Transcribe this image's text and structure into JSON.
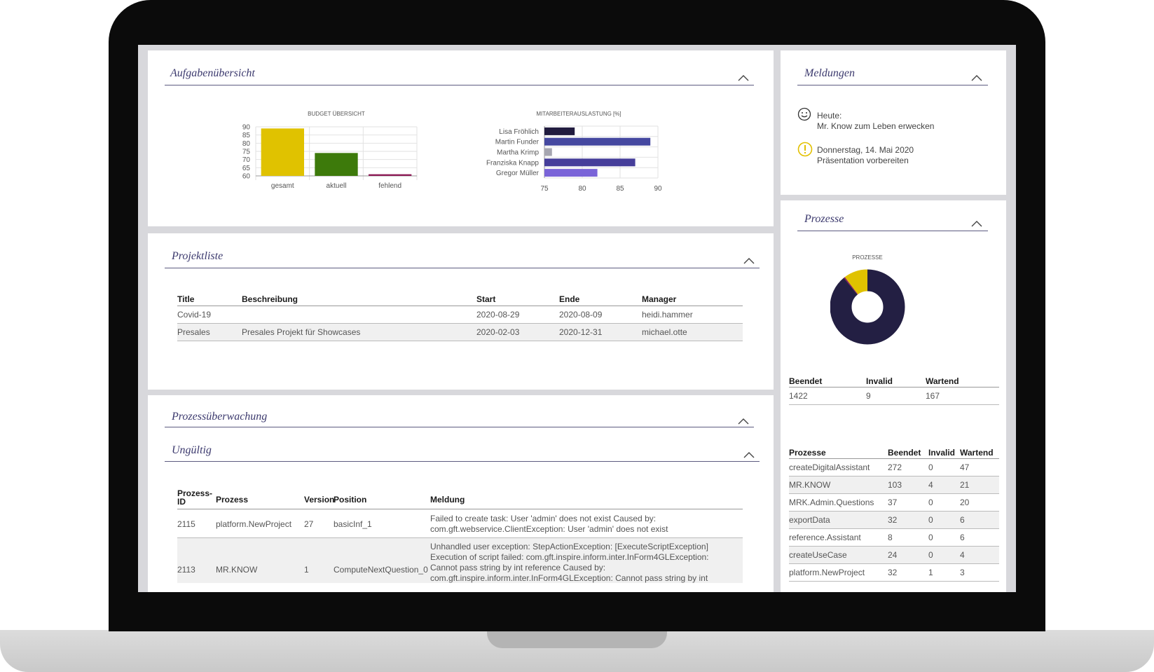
{
  "panels": {
    "aufgaben": {
      "title": "Aufgabenübersicht"
    },
    "meldungen": {
      "title": "Meldungen"
    },
    "prozesse": {
      "title": "Prozesse"
    },
    "projektliste": {
      "title": "Projektliste"
    },
    "ueberwachung": {
      "title": "Prozessüberwachung"
    },
    "ungueltig": {
      "title": "Ungültig"
    }
  },
  "chart_data": [
    {
      "type": "bar",
      "title": "BUDGET ÜBERSICHT",
      "categories": [
        "gesamt",
        "aktuell",
        "fehlend"
      ],
      "values": [
        89,
        74,
        61
      ],
      "colors": [
        "#e0c200",
        "#3d7a0b",
        "#8c1a55"
      ],
      "yticks": [
        90,
        85,
        80,
        75,
        70,
        65,
        60
      ],
      "ylim": [
        60,
        90
      ],
      "grid": true
    },
    {
      "type": "bar",
      "orientation": "horizontal",
      "title": "MITARBEITERAUSLASTUNG [%]",
      "categories": [
        "Lisa Fröhlich",
        "Martin Funder",
        "Martha Krimp",
        "Franziska Knapp",
        "Gregor Müller"
      ],
      "values": [
        79,
        89,
        76,
        87,
        82
      ],
      "colors": [
        "#211c3f",
        "#4548a0",
        "#a6a6b0",
        "#463e9a",
        "#7a64d8"
      ],
      "xticks": [
        75,
        80,
        85,
        90
      ],
      "xlim": [
        75,
        90
      ],
      "grid": true
    },
    {
      "type": "pie",
      "title": "PROZESSE",
      "labels": [
        "Beendet",
        "Invalid",
        "Wartend"
      ],
      "values": [
        1422,
        9,
        167
      ],
      "colors": [
        "#231f43",
        "#8c1a55",
        "#e0c200"
      ]
    }
  ],
  "messages": [
    {
      "icon": "smiley-icon",
      "line1": "Heute:",
      "line2": "Mr. Know zum Leben erwecken"
    },
    {
      "icon": "warning-icon",
      "line1": "Donnerstag, 14. Mai 2020",
      "line2": "Präsentation vorbereiten"
    }
  ],
  "summary": {
    "headers": [
      "Beendet",
      "Invalid",
      "Wartend"
    ],
    "values": [
      "1422",
      "9",
      "167"
    ]
  },
  "process_table": {
    "headers": [
      "Prozesse",
      "Beendet",
      "Invalid",
      "Wartend"
    ],
    "rows": [
      [
        "createDigitalAssistant",
        "272",
        "0",
        "47"
      ],
      [
        "MR.KNOW",
        "103",
        "4",
        "21"
      ],
      [
        "MRK.Admin.Questions",
        "37",
        "0",
        "20"
      ],
      [
        "exportData",
        "32",
        "0",
        "6"
      ],
      [
        "reference.Assistant",
        "8",
        "0",
        "6"
      ],
      [
        "createUseCase",
        "24",
        "0",
        "4"
      ],
      [
        "platform.NewProject",
        "32",
        "1",
        "3"
      ]
    ]
  },
  "projects": {
    "headers": [
      "Title",
      "Beschreibung",
      "Start",
      "Ende",
      "Manager"
    ],
    "rows": [
      [
        "Covid-19",
        "",
        "2020-08-29",
        "2020-08-09",
        "heidi.hammer"
      ],
      [
        "Presales",
        "Presales Projekt für Showcases",
        "2020-02-03",
        "2020-12-31",
        "michael.otte"
      ]
    ]
  },
  "invalid": {
    "headers": [
      "Prozess-ID",
      "Prozess",
      "Version",
      "Position",
      "Meldung"
    ],
    "rows": [
      {
        "id": "2115",
        "process": "platform.NewProject",
        "version": "27",
        "position": "basicInf_1",
        "message": [
          "Failed to create task: User 'admin' does not exist Caused by:",
          "com.gft.webservice.ClientException: User 'admin' does not exist"
        ]
      },
      {
        "id": "2113",
        "process": "MR.KNOW",
        "version": "1",
        "position": "ComputeNextQuestion_0",
        "message": [
          "Unhandled user exception: StepActionException: [ExecuteScriptException]",
          "Execution of script failed: com.gft.inspire.inform.inter.InForm4GLException:",
          "Cannot pass string by int reference Caused by:",
          "com.gft.inspire.inform.inter.InForm4GLException: Cannot pass string by int"
        ]
      }
    ]
  }
}
